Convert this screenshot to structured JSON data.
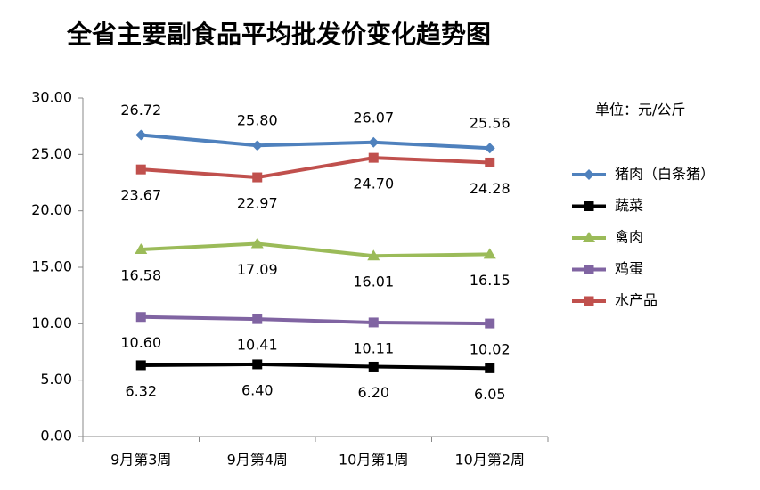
{
  "chart_data": {
    "type": "line",
    "title": "全省主要副食品平均批发价变化趋势图",
    "unit_note": "单位：元/公斤",
    "categories": [
      "9月第3周",
      "9月第4周",
      "10月第1周",
      "10月第2周"
    ],
    "series": [
      {
        "name": "猪肉（白条猪）",
        "color": "#4f81bd",
        "marker": "diamond",
        "label_position": "above",
        "values": [
          26.72,
          25.8,
          26.07,
          25.56
        ],
        "value_labels": [
          "26.72",
          "25.80",
          "26.07",
          "25.56"
        ]
      },
      {
        "name": "蔬菜",
        "color": "#000000",
        "marker": "square",
        "label_position": "below",
        "values": [
          6.32,
          6.4,
          6.2,
          6.05
        ],
        "value_labels": [
          "6.32",
          "6.40",
          "6.20",
          "6.05"
        ]
      },
      {
        "name": "禽肉",
        "color": "#9bbb59",
        "marker": "triangle",
        "label_position": "below",
        "values": [
          16.58,
          17.09,
          16.01,
          16.15
        ],
        "value_labels": [
          "16.58",
          "17.09",
          "16.01",
          "16.15"
        ]
      },
      {
        "name": "鸡蛋",
        "color": "#8064a2",
        "marker": "square",
        "label_position": "below",
        "values": [
          10.6,
          10.41,
          10.11,
          10.02
        ],
        "value_labels": [
          "10.60",
          "10.41",
          "10.11",
          "10.02"
        ]
      },
      {
        "name": "水产品",
        "color": "#c0504d",
        "marker": "square",
        "label_position": "below",
        "values": [
          23.67,
          22.97,
          24.7,
          24.28
        ],
        "value_labels": [
          "23.67",
          "22.97",
          "24.70",
          "24.28"
        ]
      }
    ],
    "ylim": [
      0,
      30
    ],
    "yticks": [
      {
        "value": 0,
        "label": "0.00"
      },
      {
        "value": 5,
        "label": "5.00"
      },
      {
        "value": 10,
        "label": "10.00"
      },
      {
        "value": 15,
        "label": "15.00"
      },
      {
        "value": 20,
        "label": "20.00"
      },
      {
        "value": 25,
        "label": "25.00"
      },
      {
        "value": 30,
        "label": "30.00"
      }
    ],
    "grid": false,
    "legend": "right"
  }
}
